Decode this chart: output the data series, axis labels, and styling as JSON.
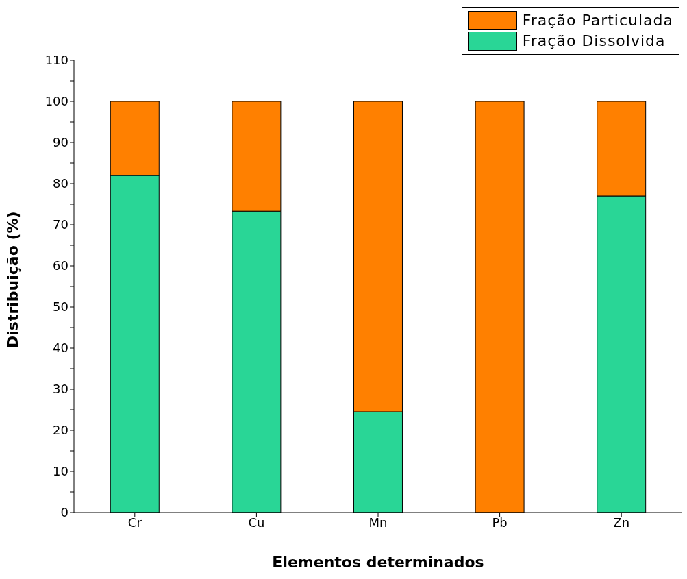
{
  "chart_data": {
    "type": "bar",
    "stacked": true,
    "xlabel": "Elementos determinados",
    "ylabel": "Distribuição (%)",
    "categories": [
      "Cr",
      "Cu",
      "Mn",
      "Pb",
      "Zn"
    ],
    "series": [
      {
        "name": "Fração Dissolvida",
        "color": "#29d696",
        "values": [
          82,
          73.3,
          24.5,
          0,
          77
        ]
      },
      {
        "name": "Fração Particulada",
        "color": "#ff8000",
        "values": [
          18,
          26.7,
          75.5,
          100,
          23
        ]
      }
    ],
    "ylim": [
      0,
      110
    ],
    "yticks": [
      0,
      {
        "value": 5,
        "label": null
      },
      10,
      {
        "value": 15,
        "label": null
      },
      20,
      {
        "value": 25,
        "label": null
      },
      30,
      {
        "value": 35,
        "label": null
      },
      40,
      {
        "value": 45,
        "label": null
      },
      50,
      {
        "value": 55,
        "label": null
      },
      60,
      {
        "value": 65,
        "label": null
      },
      70,
      {
        "value": 75,
        "label": null
      },
      80,
      {
        "value": 85,
        "label": null
      },
      90,
      {
        "value": 95,
        "label": null
      },
      100,
      {
        "value": 105,
        "label": null
      },
      110
    ],
    "legend": "top right",
    "grid": false
  }
}
